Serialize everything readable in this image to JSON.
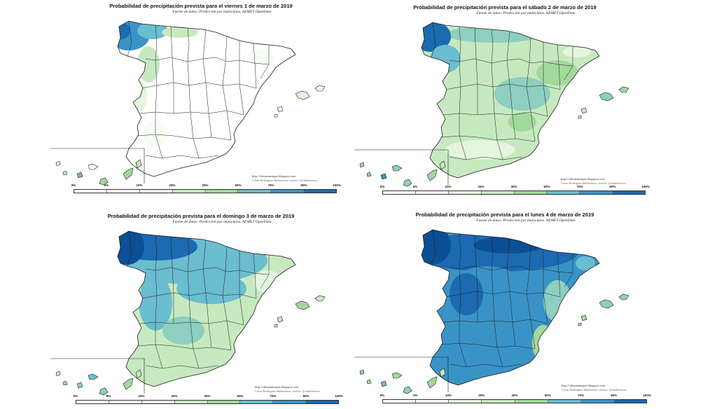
{
  "colors": {
    "c0": "#ffffff",
    "c5": "#f7fcf5",
    "c10": "#e5f5e0",
    "c20": "#c7e9c0",
    "c30": "#a1d99b",
    "c40": "#8ecfc0",
    "c50": "#6bbdd0",
    "c70": "#3a93c6",
    "c90": "#1c6aaf",
    "c100": "#0b4f95",
    "border": "#1a1a1a"
  },
  "colorbar": {
    "labels": [
      "0%",
      "5%",
      "10%",
      "20%",
      "30%",
      "50%",
      "70%",
      "90%",
      "100%"
    ]
  },
  "credit": {
    "line1": "http://climaenmapas.blogspot.com",
    "line2": "César Rodríguez Ballesteros, twitter: @cballesteros"
  },
  "source": "Fuente de datos: Predicción por municipios. AEMET OpenData",
  "panels": [
    {
      "title": "Probabilidad de precipitación prevista para el viernes 1 de marzo de 2019",
      "level": 0
    },
    {
      "title": "Probabilidad de precipitación prevista para el sábado 2 de marzo de 2019",
      "level": 1
    },
    {
      "title": "Probabilidad de precipitación prevista para el domingo 3 de marzo de 2019",
      "level": 2
    },
    {
      "title": "Probabilidad de precipitación prevista para el lunes 4 de marzo de 2019",
      "level": 3
    }
  ]
}
